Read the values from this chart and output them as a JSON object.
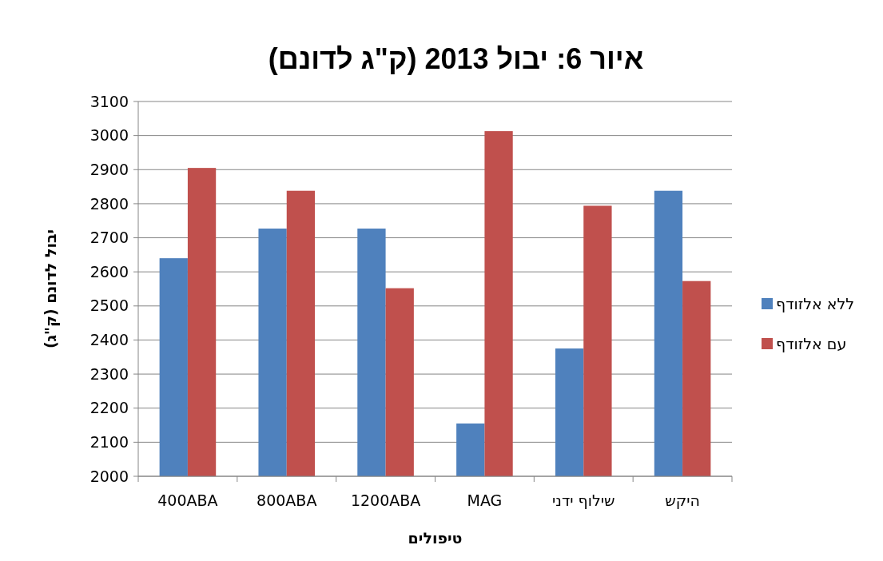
{
  "chart_data": {
    "type": "bar",
    "title": "איור 6: יבול 2013 (ק\"ג לדונם)",
    "xlabel": "טיפולים",
    "ylabel": "יבול לדונם (ק\"ג)",
    "categories": [
      "400ABA",
      "800ABA",
      "1200ABA",
      "MAG",
      "שילוף ידני",
      "היקש"
    ],
    "series": [
      {
        "name": "ללא אלזודף",
        "color": "#4f81bd",
        "values": [
          2640,
          2727,
          2727,
          2155,
          2375,
          2838
        ]
      },
      {
        "name": "עם אלזודף",
        "color": "#c0504d",
        "values": [
          2905,
          2838,
          2552,
          3013,
          2794,
          2573
        ]
      }
    ],
    "ylim": [
      2000,
      3100
    ],
    "yticks": [
      2000,
      2100,
      2200,
      2300,
      2400,
      2500,
      2600,
      2700,
      2800,
      2900,
      3000,
      3100
    ],
    "grid": "y",
    "legend": "right"
  }
}
